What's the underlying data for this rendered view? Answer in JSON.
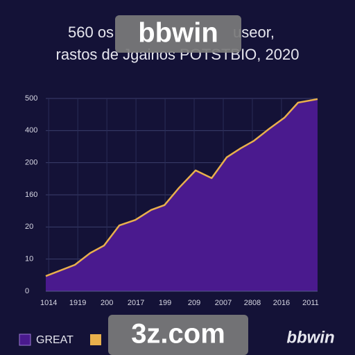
{
  "chart_data": {
    "type": "area",
    "title": "560 os",
    "title_end": "useor,",
    "subtitle": "rastos de Jgainos POTSTBIO, 2020",
    "x": [
      -0.1,
      0.9,
      1.43,
      1.9,
      2.43,
      2.98,
      3.52,
      3.98,
      4.48,
      5.05,
      5.6,
      6.12,
      6.6,
      7.05,
      7.57,
      8.1,
      8.57,
      9.24
    ],
    "series": [
      {
        "name": "GREAT",
        "color": "#4a1a8e",
        "line_color": "#e9b04c",
        "values": [
          0.47,
          0.82,
          1.19,
          1.42,
          2.05,
          2.22,
          2.53,
          2.68,
          3.22,
          3.76,
          3.52,
          4.17,
          4.45,
          4.68,
          5.05,
          5.4,
          5.87,
          5.98
        ]
      }
    ],
    "xlim": [
      -0.1,
      9.24
    ],
    "xticks": [
      {
        "value": 0,
        "label": "1014"
      },
      {
        "value": 1,
        "label": "1919"
      },
      {
        "value": 2,
        "label": "200"
      },
      {
        "value": 3,
        "label": "2017"
      },
      {
        "value": 4,
        "label": "199"
      },
      {
        "value": 5,
        "label": "209"
      },
      {
        "value": 6,
        "label": "2007"
      },
      {
        "value": 7,
        "label": "2808"
      },
      {
        "value": 8,
        "label": "2016"
      },
      {
        "value": 9,
        "label": "2011"
      }
    ],
    "ylim": [
      0,
      6
    ],
    "yticks": [
      {
        "value": 0,
        "label": "0"
      },
      {
        "value": 1,
        "label": "10"
      },
      {
        "value": 2,
        "label": "20"
      },
      {
        "value": 3,
        "label": "160"
      },
      {
        "value": 4,
        "label": "200"
      },
      {
        "value": 5,
        "label": "400"
      },
      {
        "value": 6,
        "label": "500"
      }
    ],
    "grid": true,
    "watermarks": [
      "bbwin",
      "3z.com",
      "bbwin"
    ]
  }
}
